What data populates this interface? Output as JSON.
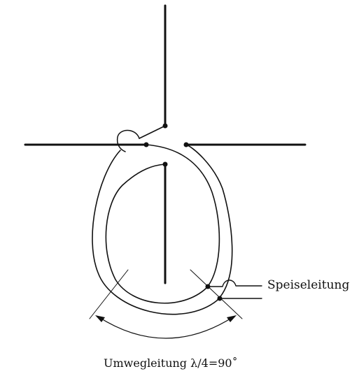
{
  "labels": {
    "feed_line": "Speiseleitung",
    "detour_line": "Umwegleitung  λ/4=90˚"
  },
  "colors": {
    "line": "#111111",
    "background": "#ffffff"
  }
}
